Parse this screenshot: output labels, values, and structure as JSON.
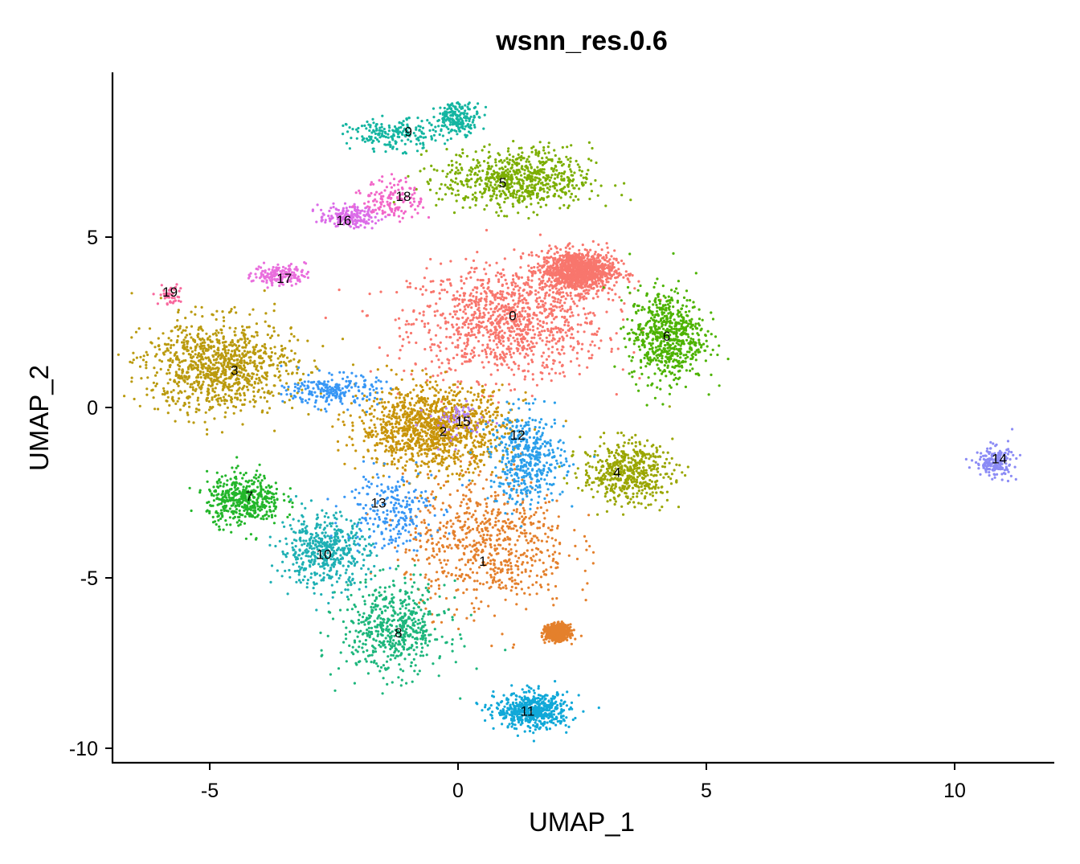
{
  "chart_data": {
    "type": "scatter",
    "title": "wsnn_res.0.6",
    "xlabel": "UMAP_1",
    "ylabel": "UMAP_2",
    "xlim": [
      -7,
      12.1
    ],
    "ylim": [
      -10.3,
      9.8
    ],
    "x_ticks": [
      -5,
      0,
      5,
      10
    ],
    "x_tick_labels": [
      "-5",
      "0",
      "5",
      "10"
    ],
    "y_ticks": [
      -10,
      -5,
      0,
      5
    ],
    "y_tick_labels": [
      "-10",
      "-5",
      "0",
      "5"
    ],
    "grid": false,
    "legend": "none",
    "clusters": [
      {
        "name": "0",
        "color": "#F8766D",
        "label_at": [
          1.1,
          2.7
        ],
        "centers": [
          [
            1.0,
            2.5,
            1.3,
            1.1
          ],
          [
            2.4,
            4.0,
            0.5,
            0.4
          ]
        ],
        "count": 2200
      },
      {
        "name": "1",
        "color": "#E4802C",
        "label_at": [
          0.5,
          -4.5
        ],
        "centers": [
          [
            0.6,
            -4.0,
            1.1,
            1.3
          ],
          [
            2.0,
            -6.6,
            0.15,
            0.15
          ]
        ],
        "count": 1400
      },
      {
        "name": "2",
        "color": "#C89409",
        "label_at": [
          -0.3,
          -0.7
        ],
        "centers": [
          [
            -0.5,
            -0.6,
            1.0,
            0.8
          ]
        ],
        "count": 1200
      },
      {
        "name": "3",
        "color": "#BA9A0E",
        "label_at": [
          -4.5,
          1.1
        ],
        "centers": [
          [
            -4.8,
            1.2,
            1.0,
            0.9
          ]
        ],
        "count": 1000
      },
      {
        "name": "4",
        "color": "#9AA600",
        "label_at": [
          3.2,
          -1.9
        ],
        "centers": [
          [
            3.4,
            -1.9,
            0.6,
            0.6
          ]
        ],
        "count": 500
      },
      {
        "name": "5",
        "color": "#7CAE00",
        "label_at": [
          0.9,
          6.6
        ],
        "centers": [
          [
            1.2,
            6.7,
            1.0,
            0.6
          ]
        ],
        "count": 700
      },
      {
        "name": "6",
        "color": "#4DB300",
        "label_at": [
          4.2,
          2.1
        ],
        "centers": [
          [
            4.2,
            2.1,
            0.5,
            0.9
          ]
        ],
        "count": 650
      },
      {
        "name": "7",
        "color": "#23B62A",
        "label_at": [
          -4.2,
          -2.6
        ],
        "centers": [
          [
            -4.3,
            -2.7,
            0.5,
            0.5
          ]
        ],
        "count": 450
      },
      {
        "name": "8",
        "color": "#1DB67C",
        "label_at": [
          -1.2,
          -6.6
        ],
        "centers": [
          [
            -1.3,
            -6.5,
            0.7,
            0.9
          ]
        ],
        "count": 550
      },
      {
        "name": "9",
        "color": "#14B5A1",
        "label_at": [
          -1.0,
          8.1
        ],
        "centers": [
          [
            -1.3,
            8.0,
            0.6,
            0.3
          ],
          [
            0.0,
            8.5,
            0.3,
            0.3
          ]
        ],
        "count": 400
      },
      {
        "name": "10",
        "color": "#1FB0B4",
        "label_at": [
          -2.7,
          -4.3
        ],
        "centers": [
          [
            -2.7,
            -4.2,
            0.6,
            0.7
          ]
        ],
        "count": 500
      },
      {
        "name": "11",
        "color": "#10A8D8",
        "label_at": [
          1.4,
          -8.9
        ],
        "centers": [
          [
            1.5,
            -8.9,
            0.5,
            0.35
          ]
        ],
        "count": 550
      },
      {
        "name": "12",
        "color": "#2B9FEA",
        "label_at": [
          1.2,
          -0.8
        ],
        "centers": [
          [
            1.4,
            -1.5,
            0.5,
            0.9
          ]
        ],
        "count": 450
      },
      {
        "name": "13",
        "color": "#3897F5",
        "label_at": [
          -1.6,
          -2.8
        ],
        "centers": [
          [
            -1.4,
            -3.0,
            0.6,
            0.8
          ],
          [
            -2.5,
            0.5,
            0.6,
            0.3
          ]
        ],
        "count": 450
      },
      {
        "name": "14",
        "color": "#8B8BF5",
        "label_at": [
          10.9,
          -1.5
        ],
        "centers": [
          [
            10.8,
            -1.6,
            0.25,
            0.3
          ]
        ],
        "count": 180
      },
      {
        "name": "15",
        "color": "#B280F5",
        "label_at": [
          0.1,
          -0.4
        ],
        "centers": [
          [
            0.0,
            -0.4,
            0.4,
            0.4
          ]
        ],
        "count": 60
      },
      {
        "name": "16",
        "color": "#DB6CE8",
        "label_at": [
          -2.3,
          5.5
        ],
        "centers": [
          [
            -2.2,
            5.6,
            0.4,
            0.2
          ]
        ],
        "count": 180
      },
      {
        "name": "17",
        "color": "#E96EDD",
        "label_at": [
          -3.5,
          3.8
        ],
        "centers": [
          [
            -3.6,
            3.9,
            0.35,
            0.2
          ]
        ],
        "count": 160
      },
      {
        "name": "18",
        "color": "#F266C8",
        "label_at": [
          -1.1,
          6.2
        ],
        "centers": [
          [
            -1.3,
            6.1,
            0.4,
            0.4
          ]
        ],
        "count": 140
      },
      {
        "name": "19",
        "color": "#F8689D",
        "label_at": [
          -5.8,
          3.4
        ],
        "centers": [
          [
            -5.8,
            3.3,
            0.15,
            0.2
          ]
        ],
        "count": 50
      }
    ]
  }
}
